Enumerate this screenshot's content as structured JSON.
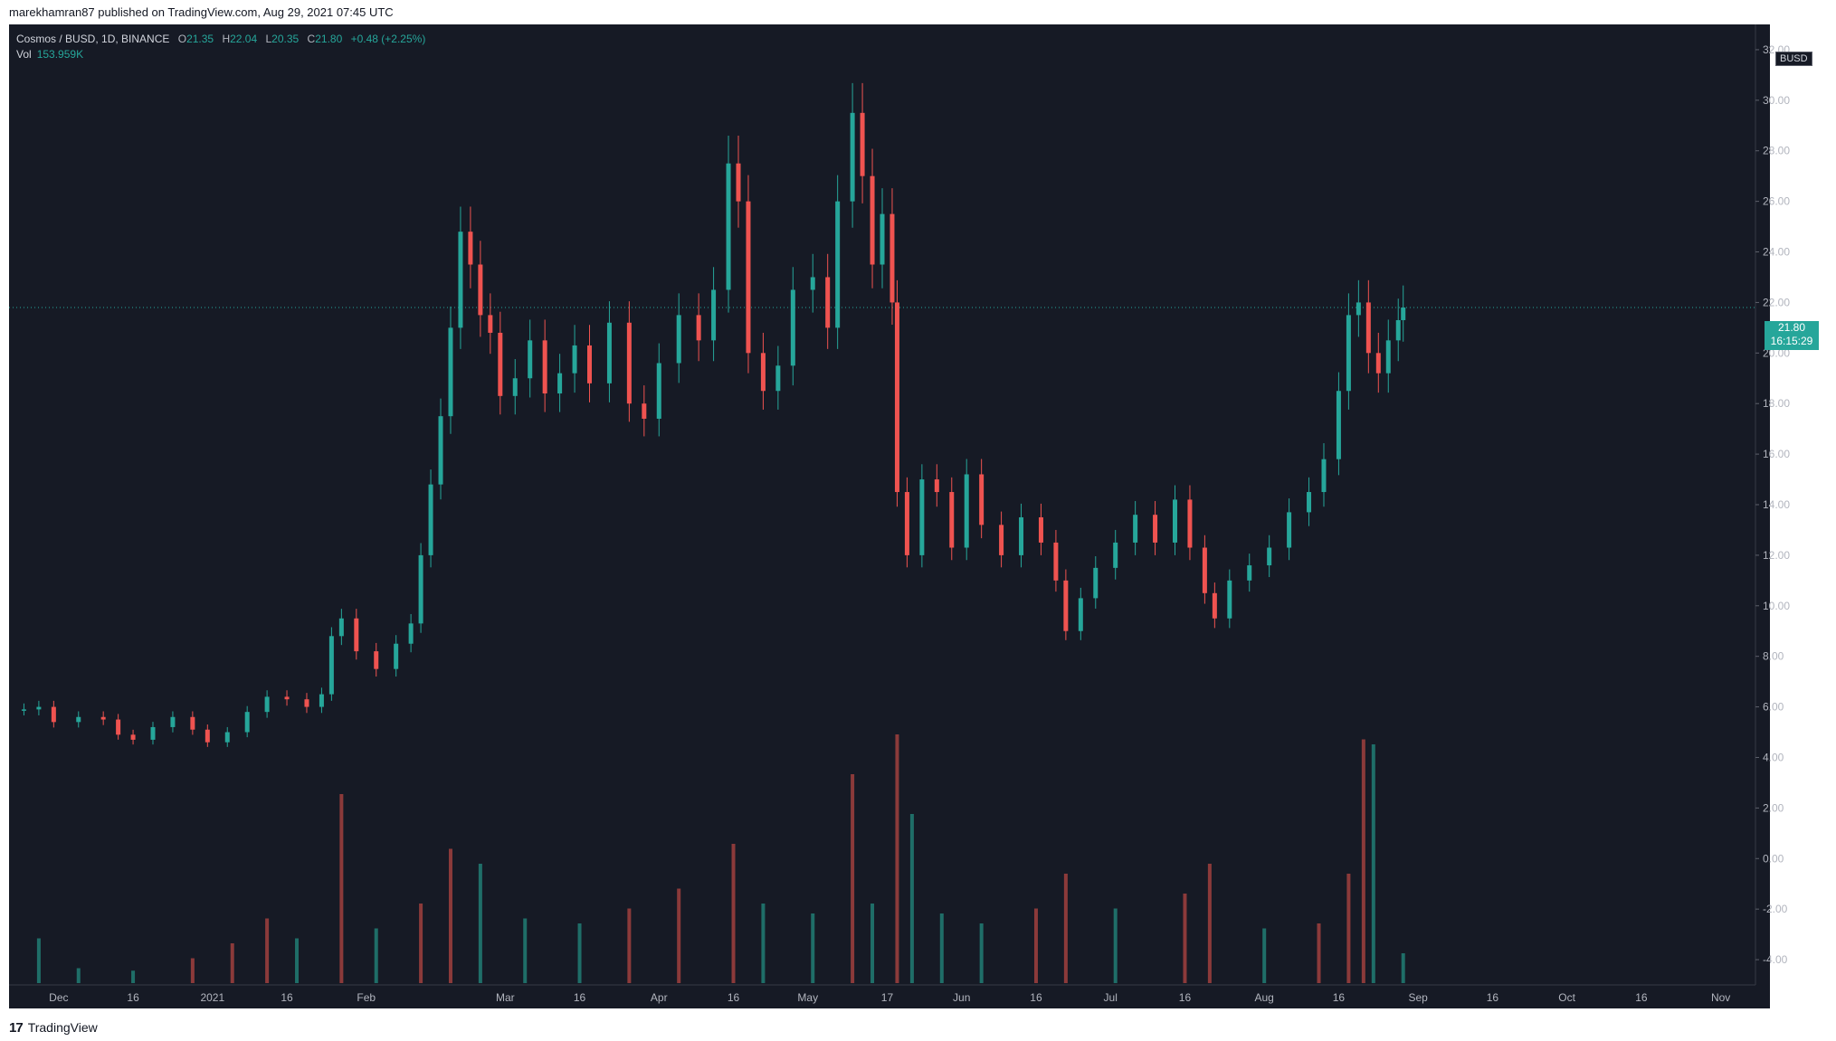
{
  "header": {
    "publisher": "marekhamran87 published on TradingView.com, Aug 29, 2021 07:45 UTC"
  },
  "legend": {
    "symbol": "Cosmos / BUSD, 1D, BINANCE",
    "open_label": "O",
    "open": "21.35",
    "high_label": "H",
    "high": "22.04",
    "low_label": "L",
    "low": "20.35",
    "close_label": "C",
    "close": "21.80",
    "change": "+0.48 (+2.25%)",
    "vol_label": "Vol",
    "vol": "153.959K"
  },
  "price_scale": {
    "currency": "BUSD",
    "top_partial_label": "3",
    "last_price": "21.80",
    "countdown": "16:15:29"
  },
  "footer": {
    "brand": "TradingView",
    "logo_icon": "tradingview-logo-icon"
  },
  "colors": {
    "up": "#26a69a",
    "down": "#ef5350",
    "vol_up": "#1f6e68",
    "vol_down": "#8b3a3a",
    "background": "#161a25",
    "text": "#b2b5be"
  },
  "chart_data": {
    "type": "candlestick",
    "title": "Cosmos / BUSD, 1D, BINANCE",
    "interval": "1D",
    "ylim": [
      -5,
      33
    ],
    "yticks": [
      32,
      30,
      28,
      26,
      24,
      22,
      20,
      18,
      16,
      14,
      12,
      10,
      8,
      6,
      4,
      2,
      0,
      -2,
      -4
    ],
    "ytick_labels": [
      "32.00",
      "30.00",
      "28.00",
      "26.00",
      "24.00",
      "22.00",
      "20.00",
      "18.00",
      "16.00",
      "14.00",
      "12.00",
      "10.00",
      "8.00",
      "6.00",
      "4.00",
      "2.00",
      "0.00",
      "-2.00",
      "-4.00"
    ],
    "xtick_labels": [
      "Dec",
      "16",
      "2021",
      "16",
      "Feb",
      "Mar",
      "16",
      "Apr",
      "16",
      "May",
      "17",
      "Jun",
      "16",
      "Jul",
      "16",
      "Aug",
      "16",
      "Sep",
      "16",
      "Oct",
      "16",
      "Nov"
    ],
    "xtick_dates": [
      "2020-12-01",
      "2020-12-16",
      "2021-01-01",
      "2021-01-16",
      "2021-02-01",
      "2021-03-01",
      "2021-03-16",
      "2021-04-01",
      "2021-04-16",
      "2021-05-01",
      "2021-05-17",
      "2021-06-01",
      "2021-06-16",
      "2021-07-01",
      "2021-07-16",
      "2021-08-01",
      "2021-08-16",
      "2021-09-01",
      "2021-09-16",
      "2021-10-01",
      "2021-10-16",
      "2021-11-01"
    ],
    "last_close": 21.8,
    "series": [
      {
        "name": "price",
        "points": [
          {
            "date": "2020-11-24",
            "close": 5.9
          },
          {
            "date": "2020-11-27",
            "close": 6.0
          },
          {
            "date": "2020-11-30",
            "close": 5.4
          },
          {
            "date": "2020-12-05",
            "close": 5.6
          },
          {
            "date": "2020-12-10",
            "close": 5.5
          },
          {
            "date": "2020-12-13",
            "close": 4.9
          },
          {
            "date": "2020-12-16",
            "close": 4.7
          },
          {
            "date": "2020-12-20",
            "close": 5.2
          },
          {
            "date": "2020-12-24",
            "close": 5.6
          },
          {
            "date": "2020-12-28",
            "close": 5.1
          },
          {
            "date": "2020-12-31",
            "close": 4.6
          },
          {
            "date": "2021-01-04",
            "close": 5.0
          },
          {
            "date": "2021-01-08",
            "close": 5.8
          },
          {
            "date": "2021-01-12",
            "close": 6.4
          },
          {
            "date": "2021-01-16",
            "close": 6.3
          },
          {
            "date": "2021-01-20",
            "close": 6.0
          },
          {
            "date": "2021-01-23",
            "close": 6.5
          },
          {
            "date": "2021-01-25",
            "close": 8.8
          },
          {
            "date": "2021-01-27",
            "close": 9.5
          },
          {
            "date": "2021-01-30",
            "close": 8.2
          },
          {
            "date": "2021-02-03",
            "close": 7.5
          },
          {
            "date": "2021-02-07",
            "close": 8.5
          },
          {
            "date": "2021-02-10",
            "close": 9.3
          },
          {
            "date": "2021-02-12",
            "close": 12.0
          },
          {
            "date": "2021-02-14",
            "close": 14.8
          },
          {
            "date": "2021-02-16",
            "close": 17.5
          },
          {
            "date": "2021-02-18",
            "close": 21.0
          },
          {
            "date": "2021-02-20",
            "close": 24.8
          },
          {
            "date": "2021-02-22",
            "close": 23.5
          },
          {
            "date": "2021-02-24",
            "close": 21.5
          },
          {
            "date": "2021-02-26",
            "close": 20.8
          },
          {
            "date": "2021-02-28",
            "close": 18.3
          },
          {
            "date": "2021-03-03",
            "close": 19.0
          },
          {
            "date": "2021-03-06",
            "close": 20.5
          },
          {
            "date": "2021-03-09",
            "close": 18.4
          },
          {
            "date": "2021-03-12",
            "close": 19.2
          },
          {
            "date": "2021-03-15",
            "close": 20.3
          },
          {
            "date": "2021-03-18",
            "close": 18.8
          },
          {
            "date": "2021-03-22",
            "close": 21.2
          },
          {
            "date": "2021-03-26",
            "close": 18.0
          },
          {
            "date": "2021-03-29",
            "close": 17.4
          },
          {
            "date": "2021-04-01",
            "close": 19.6
          },
          {
            "date": "2021-04-05",
            "close": 21.5
          },
          {
            "date": "2021-04-09",
            "close": 20.5
          },
          {
            "date": "2021-04-12",
            "close": 22.5
          },
          {
            "date": "2021-04-15",
            "close": 27.5
          },
          {
            "date": "2021-04-17",
            "close": 26.0
          },
          {
            "date": "2021-04-19",
            "close": 20.0
          },
          {
            "date": "2021-04-22",
            "close": 18.5
          },
          {
            "date": "2021-04-25",
            "close": 19.5
          },
          {
            "date": "2021-04-28",
            "close": 22.5
          },
          {
            "date": "2021-05-02",
            "close": 23.0
          },
          {
            "date": "2021-05-05",
            "close": 21.0
          },
          {
            "date": "2021-05-07",
            "close": 26.0
          },
          {
            "date": "2021-05-10",
            "close": 29.5
          },
          {
            "date": "2021-05-12",
            "close": 27.0
          },
          {
            "date": "2021-05-14",
            "close": 23.5
          },
          {
            "date": "2021-05-16",
            "close": 25.5
          },
          {
            "date": "2021-05-18",
            "close": 22.0
          },
          {
            "date": "2021-05-19",
            "close": 14.5
          },
          {
            "date": "2021-05-21",
            "close": 12.0
          },
          {
            "date": "2021-05-24",
            "close": 15.0
          },
          {
            "date": "2021-05-27",
            "close": 14.5
          },
          {
            "date": "2021-05-30",
            "close": 12.3
          },
          {
            "date": "2021-06-02",
            "close": 15.2
          },
          {
            "date": "2021-06-05",
            "close": 13.2
          },
          {
            "date": "2021-06-09",
            "close": 12.0
          },
          {
            "date": "2021-06-13",
            "close": 13.5
          },
          {
            "date": "2021-06-17",
            "close": 12.5
          },
          {
            "date": "2021-06-20",
            "close": 11.0
          },
          {
            "date": "2021-06-22",
            "close": 9.0
          },
          {
            "date": "2021-06-25",
            "close": 10.3
          },
          {
            "date": "2021-06-28",
            "close": 11.5
          },
          {
            "date": "2021-07-02",
            "close": 12.5
          },
          {
            "date": "2021-07-06",
            "close": 13.6
          },
          {
            "date": "2021-07-10",
            "close": 12.5
          },
          {
            "date": "2021-07-14",
            "close": 14.2
          },
          {
            "date": "2021-07-17",
            "close": 12.3
          },
          {
            "date": "2021-07-20",
            "close": 10.5
          },
          {
            "date": "2021-07-22",
            "close": 9.5
          },
          {
            "date": "2021-07-25",
            "close": 11.0
          },
          {
            "date": "2021-07-29",
            "close": 11.6
          },
          {
            "date": "2021-08-02",
            "close": 12.3
          },
          {
            "date": "2021-08-06",
            "close": 13.7
          },
          {
            "date": "2021-08-10",
            "close": 14.5
          },
          {
            "date": "2021-08-13",
            "close": 15.8
          },
          {
            "date": "2021-08-16",
            "close": 18.5
          },
          {
            "date": "2021-08-18",
            "close": 21.5
          },
          {
            "date": "2021-08-20",
            "close": 22.0
          },
          {
            "date": "2021-08-22",
            "close": 20.0
          },
          {
            "date": "2021-08-24",
            "close": 19.2
          },
          {
            "date": "2021-08-26",
            "close": 20.5
          },
          {
            "date": "2021-08-28",
            "close": 21.3
          },
          {
            "date": "2021-08-29",
            "close": 21.8
          }
        ]
      },
      {
        "name": "volume",
        "axis_range": [
          0,
          5
        ],
        "points": [
          {
            "date": "2020-11-27",
            "value": 0.9
          },
          {
            "date": "2020-12-05",
            "value": 0.3
          },
          {
            "date": "2020-12-16",
            "value": 0.25
          },
          {
            "date": "2020-12-28",
            "value": 0.5
          },
          {
            "date": "2021-01-05",
            "value": 0.8
          },
          {
            "date": "2021-01-12",
            "value": 1.3
          },
          {
            "date": "2021-01-18",
            "value": 0.9
          },
          {
            "date": "2021-01-27",
            "value": 3.8
          },
          {
            "date": "2021-02-03",
            "value": 1.1
          },
          {
            "date": "2021-02-12",
            "value": 1.6
          },
          {
            "date": "2021-02-18",
            "value": 2.7
          },
          {
            "date": "2021-02-24",
            "value": 2.4
          },
          {
            "date": "2021-03-05",
            "value": 1.3
          },
          {
            "date": "2021-03-16",
            "value": 1.2
          },
          {
            "date": "2021-03-26",
            "value": 1.5
          },
          {
            "date": "2021-04-05",
            "value": 1.9
          },
          {
            "date": "2021-04-16",
            "value": 2.8
          },
          {
            "date": "2021-04-22",
            "value": 1.6
          },
          {
            "date": "2021-05-02",
            "value": 1.4
          },
          {
            "date": "2021-05-10",
            "value": 4.2
          },
          {
            "date": "2021-05-14",
            "value": 1.6
          },
          {
            "date": "2021-05-19",
            "value": 5.0
          },
          {
            "date": "2021-05-22",
            "value": 3.4
          },
          {
            "date": "2021-05-28",
            "value": 1.4
          },
          {
            "date": "2021-06-05",
            "value": 1.2
          },
          {
            "date": "2021-06-16",
            "value": 1.5
          },
          {
            "date": "2021-06-22",
            "value": 2.2
          },
          {
            "date": "2021-07-02",
            "value": 1.5
          },
          {
            "date": "2021-07-16",
            "value": 1.8
          },
          {
            "date": "2021-07-21",
            "value": 2.4
          },
          {
            "date": "2021-08-01",
            "value": 1.1
          },
          {
            "date": "2021-08-12",
            "value": 1.2
          },
          {
            "date": "2021-08-18",
            "value": 2.2
          },
          {
            "date": "2021-08-21",
            "value": 4.9
          },
          {
            "date": "2021-08-23",
            "value": 4.8
          },
          {
            "date": "2021-08-29",
            "value": 0.6
          }
        ]
      }
    ]
  }
}
